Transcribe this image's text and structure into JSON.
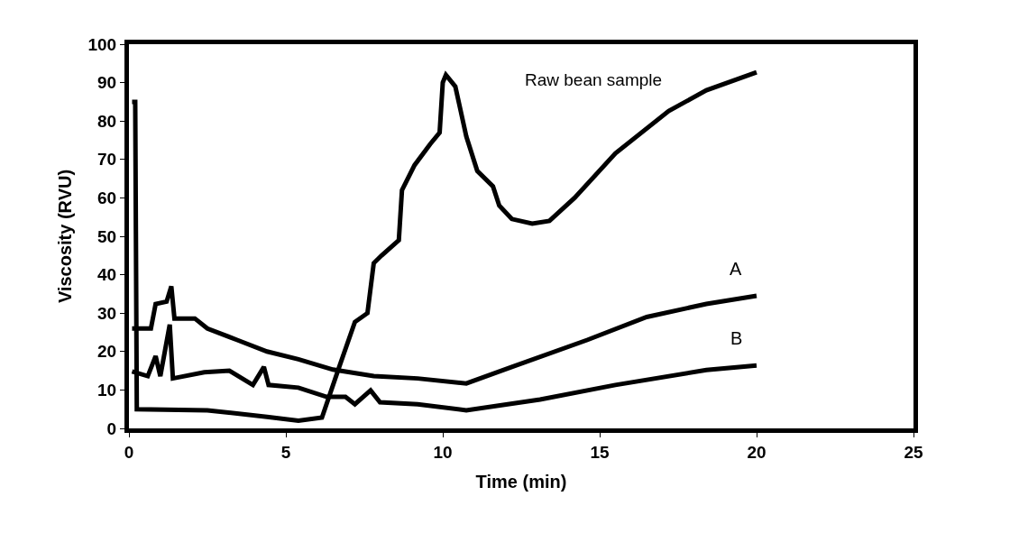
{
  "chart_data": {
    "type": "line",
    "xlabel": "Time (min)",
    "ylabel": "Viscosity (RVU)",
    "xlim": [
      0,
      25
    ],
    "xticks": [
      0,
      5,
      10,
      15,
      20,
      25
    ],
    "ylim": [
      0,
      100
    ],
    "yticks": [
      0,
      10,
      20,
      30,
      40,
      50,
      60,
      70,
      80,
      90,
      100
    ],
    "grid": false,
    "legend": false,
    "marker": "none",
    "line_style": "solid",
    "series": [
      {
        "name": "Raw bean sample",
        "color": "#000000",
        "x": [
          0.1,
          0.2,
          0.25,
          2.5,
          4.4,
          5.4,
          6.15,
          6.7,
          7.2,
          7.6,
          7.8,
          8.05,
          8.6,
          8.7,
          9.1,
          9.6,
          9.9,
          10.0,
          10.1,
          10.4,
          10.75,
          11.1,
          11.6,
          11.8,
          12.2,
          12.85,
          13.4,
          14.2,
          15.5,
          17.2,
          18.4,
          20.0
        ],
        "values": [
          85,
          85,
          5,
          4.7,
          3,
          2,
          2.8,
          16,
          27.7,
          30,
          43,
          45,
          49,
          62,
          68.5,
          74,
          77,
          90,
          92,
          89,
          76,
          67,
          63,
          58,
          54.5,
          53.3,
          54,
          60,
          71.6,
          82.6,
          88,
          92.7
        ]
      },
      {
        "name": "A",
        "color": "#000000",
        "x": [
          0.1,
          0.7,
          0.85,
          1.2,
          1.35,
          1.45,
          2.1,
          2.5,
          3.45,
          4.4,
          5.4,
          6.5,
          7.8,
          9.2,
          10.75,
          12.2,
          14.6,
          16.5,
          18.4,
          20.0
        ],
        "values": [
          26,
          26,
          32.4,
          33,
          37,
          28.6,
          28.6,
          26,
          23,
          20,
          18,
          15.3,
          13.6,
          13,
          11.7,
          16,
          23,
          29,
          32.4,
          34.5
        ]
      },
      {
        "name": "B",
        "color": "#000000",
        "x": [
          0.1,
          0.6,
          0.85,
          1.0,
          1.3,
          1.4,
          2.4,
          3.2,
          3.95,
          4.3,
          4.45,
          5.4,
          6.3,
          6.9,
          7.2,
          7.7,
          8.0,
          9.2,
          10.75,
          13.1,
          15.5,
          18.4,
          20.0
        ],
        "values": [
          14.8,
          13.6,
          18.8,
          13.6,
          27,
          13,
          14.6,
          15,
          11.3,
          16,
          11.3,
          10.6,
          8.2,
          8.2,
          6.3,
          9.9,
          6.8,
          6.3,
          4.7,
          7.5,
          11.3,
          15.2,
          16.4
        ]
      }
    ]
  }
}
